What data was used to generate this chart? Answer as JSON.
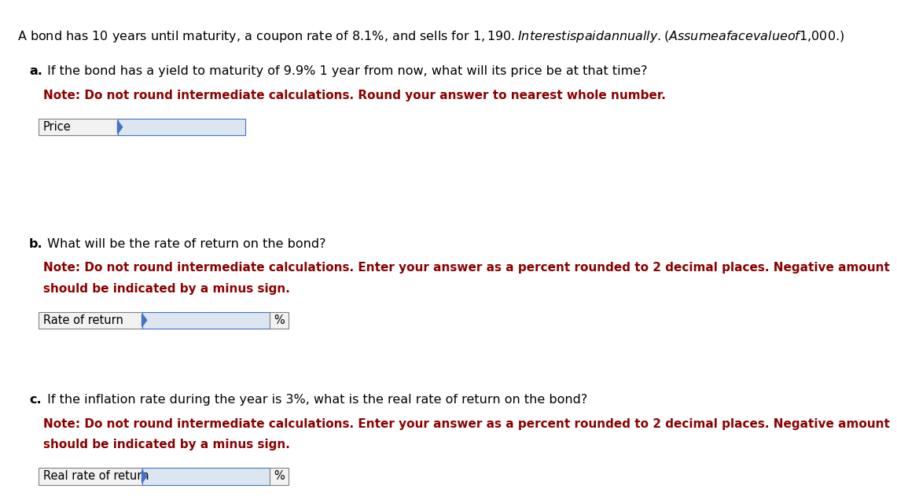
{
  "background_color": "#ffffff",
  "intro_text": "A bond has 10 years until maturity, a coupon rate of 8.1%, and sells for $1,190. Interest is paid annually. (Assume a face value of $1,000.)",
  "intro_fontsize": 11.5,
  "intro_color": "#000000",
  "note_color": "#8B0000",
  "sections": [
    {
      "letter": "a.",
      "question": " If the bond has a yield to maturity of 9.9% 1 year from now, what will its price be at that time?",
      "note_lines": [
        "Note: Do not round intermediate calculations. Round your answer to nearest whole number."
      ],
      "fields": [
        {
          "label": "Price",
          "has_percent": false
        }
      ]
    },
    {
      "letter": "b.",
      "question": " What will be the rate of return on the bond?",
      "note_lines": [
        "Note: Do not round intermediate calculations. Enter your answer as a percent rounded to 2 decimal places. Negative amount",
        "should be indicated by a minus sign."
      ],
      "fields": [
        {
          "label": "Rate of return",
          "has_percent": true
        }
      ]
    },
    {
      "letter": "c.",
      "question": " If the inflation rate during the year is 3%, what is the real rate of return on the bond?",
      "note_lines": [
        "Note: Do not round intermediate calculations. Enter your answer as a percent rounded to 2 decimal places. Negative amount",
        "should be indicated by a minus sign."
      ],
      "fields": [
        {
          "label": "Real rate of return",
          "has_percent": true
        }
      ]
    }
  ],
  "label_fontsize": 10.5,
  "question_fontsize": 11.5,
  "note_fontsize": 11.0,
  "field_box_color": "#dce6f1",
  "field_border_color": "#4472c4",
  "label_box_color": "#f2f2f2",
  "label_border_color": "#808080",
  "triangle_color": "#4472c4"
}
